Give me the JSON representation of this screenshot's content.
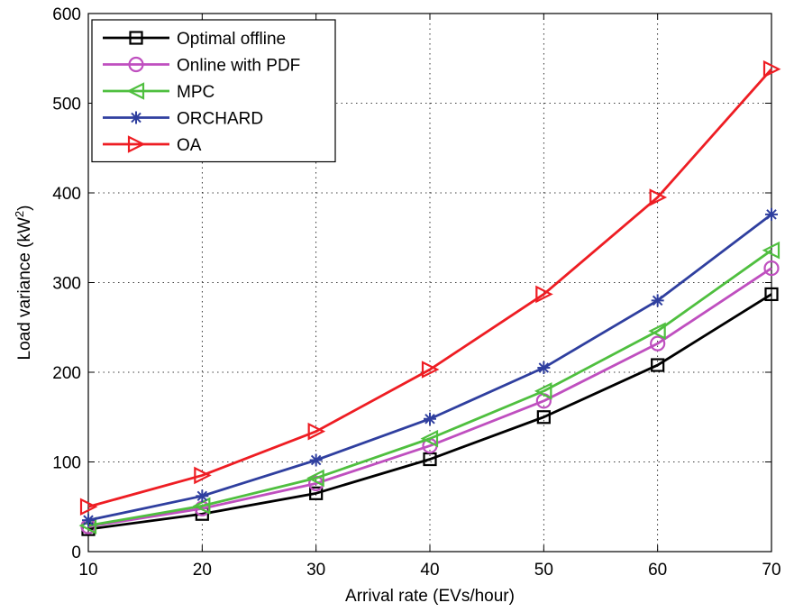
{
  "chart_data": {
    "type": "line",
    "title": "",
    "xlabel": "Arrival rate (EVs/hour)",
    "ylabel": "Load variance (kW",
    "ylabel_sup": "2",
    "ylabel_close": ")",
    "xlim": [
      10,
      70
    ],
    "ylim": [
      0,
      600
    ],
    "xticks": [
      10,
      20,
      30,
      40,
      50,
      60,
      70
    ],
    "yticks": [
      0,
      100,
      200,
      300,
      400,
      500,
      600
    ],
    "grid": true,
    "legend_position": "top-left",
    "x": [
      10,
      20,
      30,
      40,
      50,
      60,
      70
    ],
    "series": [
      {
        "name": "Optimal offline",
        "color": "#000000",
        "marker": "square",
        "values": [
          25,
          42,
          65,
          103,
          150,
          208,
          287
        ]
      },
      {
        "name": "Online with PDF",
        "color": "#bf4fbf",
        "marker": "circle",
        "values": [
          28,
          48,
          76,
          118,
          168,
          232,
          316
        ]
      },
      {
        "name": "MPC",
        "color": "#4fbf3f",
        "marker": "triangle-left",
        "values": [
          29,
          51,
          82,
          126,
          179,
          246,
          336
        ]
      },
      {
        "name": "ORCHARD",
        "color": "#2f3f9f",
        "marker": "asterisk",
        "values": [
          35,
          62,
          102,
          148,
          205,
          280,
          376
        ]
      },
      {
        "name": "OA",
        "color": "#ee1d23",
        "marker": "triangle-right",
        "values": [
          50,
          85,
          134,
          203,
          287,
          395,
          538
        ]
      }
    ]
  }
}
